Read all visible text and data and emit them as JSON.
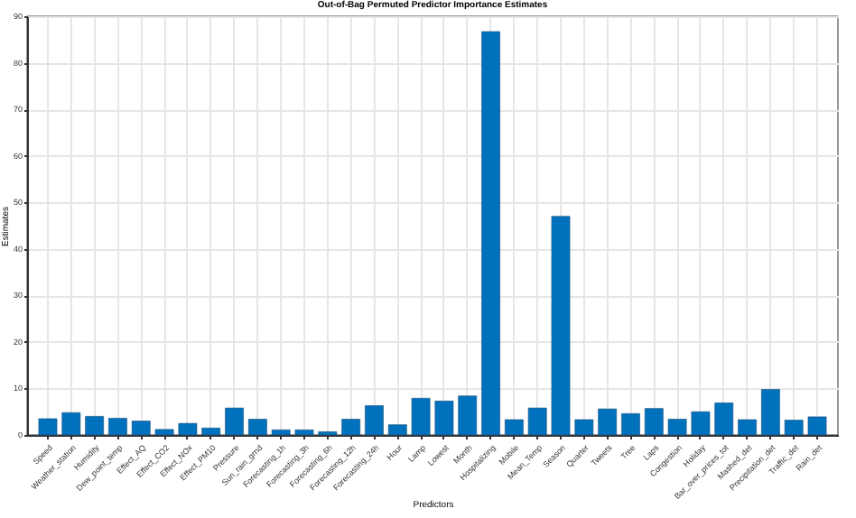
{
  "chart_data": {
    "type": "bar",
    "title": "Out-of-Bag Permuted Predictor Importance Estimates",
    "xlabel": "Predictors",
    "ylabel": "Estimates",
    "categories": [
      "Speed",
      "Weather_station",
      "Humidity",
      "Dew_point_temp",
      "Effect_AQ",
      "Effect_CO2",
      "Effect_NOx",
      "Effect_PM10",
      "Pressure",
      "Sun_rain_grnd",
      "Forecasting_1h",
      "Forecasting_3h",
      "Forecasting_6h",
      "Forecasting_12h",
      "Forecasting_24h",
      "Hour",
      "Lamp",
      "Lowest",
      "Month",
      "Hospitalizing",
      "Mobile",
      "Mean_Temp",
      "Season",
      "Quarter",
      "Tweets",
      "Tree",
      "Laps",
      "Congestion",
      "Holiday",
      "Bar_over_prices_tot",
      "Mashed_det",
      "Precipitation_det",
      "Traffic_det",
      "Rain_det"
    ],
    "values": [
      3.5,
      4.8,
      4.0,
      3.6,
      3.0,
      1.2,
      2.5,
      1.5,
      5.8,
      3.4,
      1.1,
      1.1,
      0.7,
      3.4,
      6.3,
      2.2,
      7.9,
      7.3,
      8.4,
      86.7,
      3.3,
      5.8,
      47,
      3.3,
      5.6,
      4.6,
      5.7,
      3.4,
      5.0,
      6.9,
      3.3,
      9.8,
      3.2,
      3.9
    ],
    "color": "#0072bd",
    "ylim": [
      0,
      90
    ],
    "yticks": [
      0,
      10,
      20,
      30,
      40,
      50,
      60,
      70,
      80,
      90
    ],
    "grid": true
  }
}
